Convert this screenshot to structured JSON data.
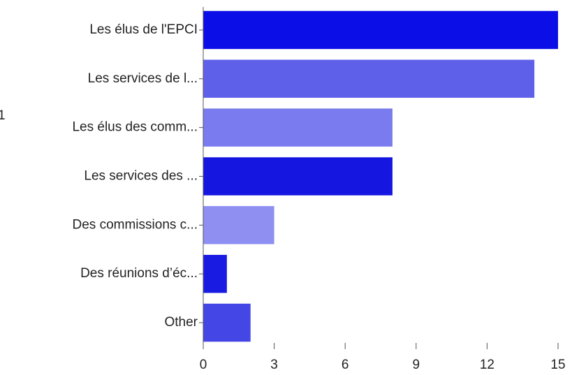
{
  "chart_data": {
    "type": "barh",
    "annotation": "1",
    "categories": [
      "Les élus de l'EPCI",
      "Les services de l...",
      "Les élus des comm...",
      "Les services des ...",
      "Des commissions c...",
      "Des réunions d’éc...",
      "Other"
    ],
    "values": [
      15,
      14,
      8,
      8,
      3,
      1,
      2
    ],
    "colors": [
      "#0b0ee6",
      "#5f60ea",
      "#7a7bee",
      "#1516e0",
      "#8f8ff2",
      "#1a1be2",
      "#4546e6"
    ],
    "xlim": [
      0,
      15
    ],
    "xticks": [
      0,
      3,
      6,
      9,
      12,
      15
    ],
    "grid": false
  }
}
